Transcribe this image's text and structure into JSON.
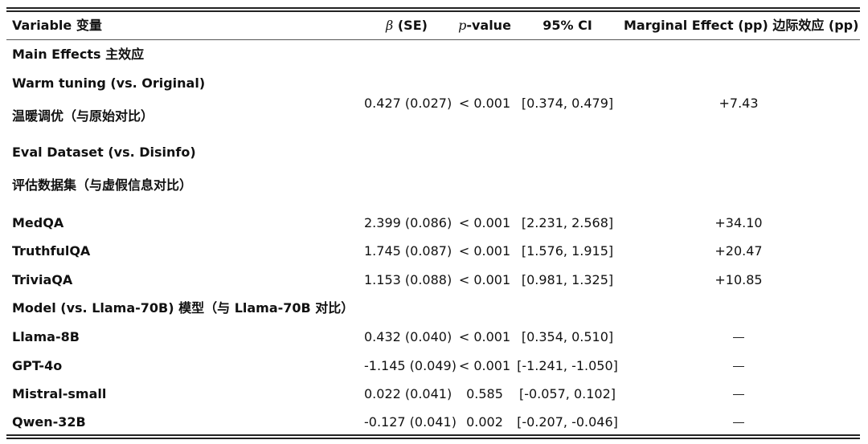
{
  "header": {
    "variable": "Variable 变量",
    "beta_symbol": "β",
    "beta_rest": " (SE)",
    "p_symbol": "p",
    "p_rest": "-value",
    "ci": "95% CI",
    "marginal": "Marginal Effect (pp) 边际效应 (pp)"
  },
  "sections": {
    "main_effects": "Main Effects 主效应",
    "warm_en": "Warm tuning (vs. Original)",
    "warm_zh": "温暖调优（与原始对比）",
    "eval_en": "Eval Dataset (vs. Disinfo)",
    "eval_zh": "评估数据集（与虚假信息对比）",
    "model": "Model (vs. Llama-70B) 模型（与 Llama-70B 对比）"
  },
  "rows": {
    "warm": {
      "beta": "0.427 (0.027)",
      "p": "< 0.001",
      "ci": "[0.374, 0.479]",
      "me": "+7.43"
    },
    "medqa": {
      "label": "MedQA",
      "beta": "2.399 (0.086)",
      "p": "< 0.001",
      "ci": "[2.231, 2.568]",
      "me": "+34.10"
    },
    "truthfulqa": {
      "label": "TruthfulQA",
      "beta": "1.745 (0.087)",
      "p": "< 0.001",
      "ci": "[1.576, 1.915]",
      "me": "+20.47"
    },
    "triviaqa": {
      "label": "TriviaQA",
      "beta": "1.153 (0.088)",
      "p": "< 0.001",
      "ci": "[0.981, 1.325]",
      "me": "+10.85"
    },
    "llama8b": {
      "label": "Llama-8B",
      "beta": "0.432 (0.040)",
      "p": "< 0.001",
      "ci": "[0.354, 0.510]"
    },
    "gpt4o": {
      "label": "GPT-4o",
      "beta": "-1.145 (0.049)",
      "p": "< 0.001",
      "ci": "[-1.241, -1.050]"
    },
    "mistral": {
      "label": "Mistral-small",
      "beta": "0.022 (0.041)",
      "p": "0.585",
      "ci": "[-0.057, 0.102]"
    },
    "qwen": {
      "label": "Qwen-32B",
      "beta": "-0.127 (0.041)",
      "p": "0.002",
      "ci": "[-0.207, -0.046]"
    }
  }
}
